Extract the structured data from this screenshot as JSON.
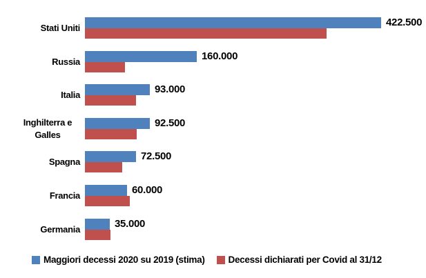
{
  "chart_data": {
    "type": "bar",
    "orientation": "horizontal",
    "title": "",
    "xlabel": "",
    "ylabel": "",
    "gridlines": false,
    "value_axis_visible": false,
    "legend_position": "bottom",
    "xlim": [
      0,
      440000
    ],
    "categories": [
      "Stati Uniti",
      "Russia",
      "Italia",
      "Inghilterra e Galles",
      "Spagna",
      "Francia",
      "Germania"
    ],
    "series": [
      {
        "name": "Maggiori decessi 2020 su 2019 (stima)",
        "color": "#4F81BD",
        "values": [
          422500,
          160000,
          93000,
          92500,
          72500,
          60000,
          35000
        ],
        "data_labels": [
          "422.500",
          "160.000",
          "93.000",
          "92.500",
          "72.500",
          "60.000",
          "35.000"
        ]
      },
      {
        "name": "Decessi dichiarati per Covid al 31/12",
        "color": "#C0504D",
        "values": [
          345000,
          57000,
          73000,
          74000,
          53000,
          64500,
          36000
        ],
        "data_labels": []
      }
    ]
  },
  "legend": {
    "items": [
      {
        "label": "Maggiori decessi 2020 su 2019 (stima)",
        "color": "#4F81BD"
      },
      {
        "label": "Decessi dichiarati per Covid al 31/12",
        "color": "#C0504D"
      }
    ]
  },
  "layout_colors": {
    "background": "#ffffff",
    "text": "#000000"
  }
}
